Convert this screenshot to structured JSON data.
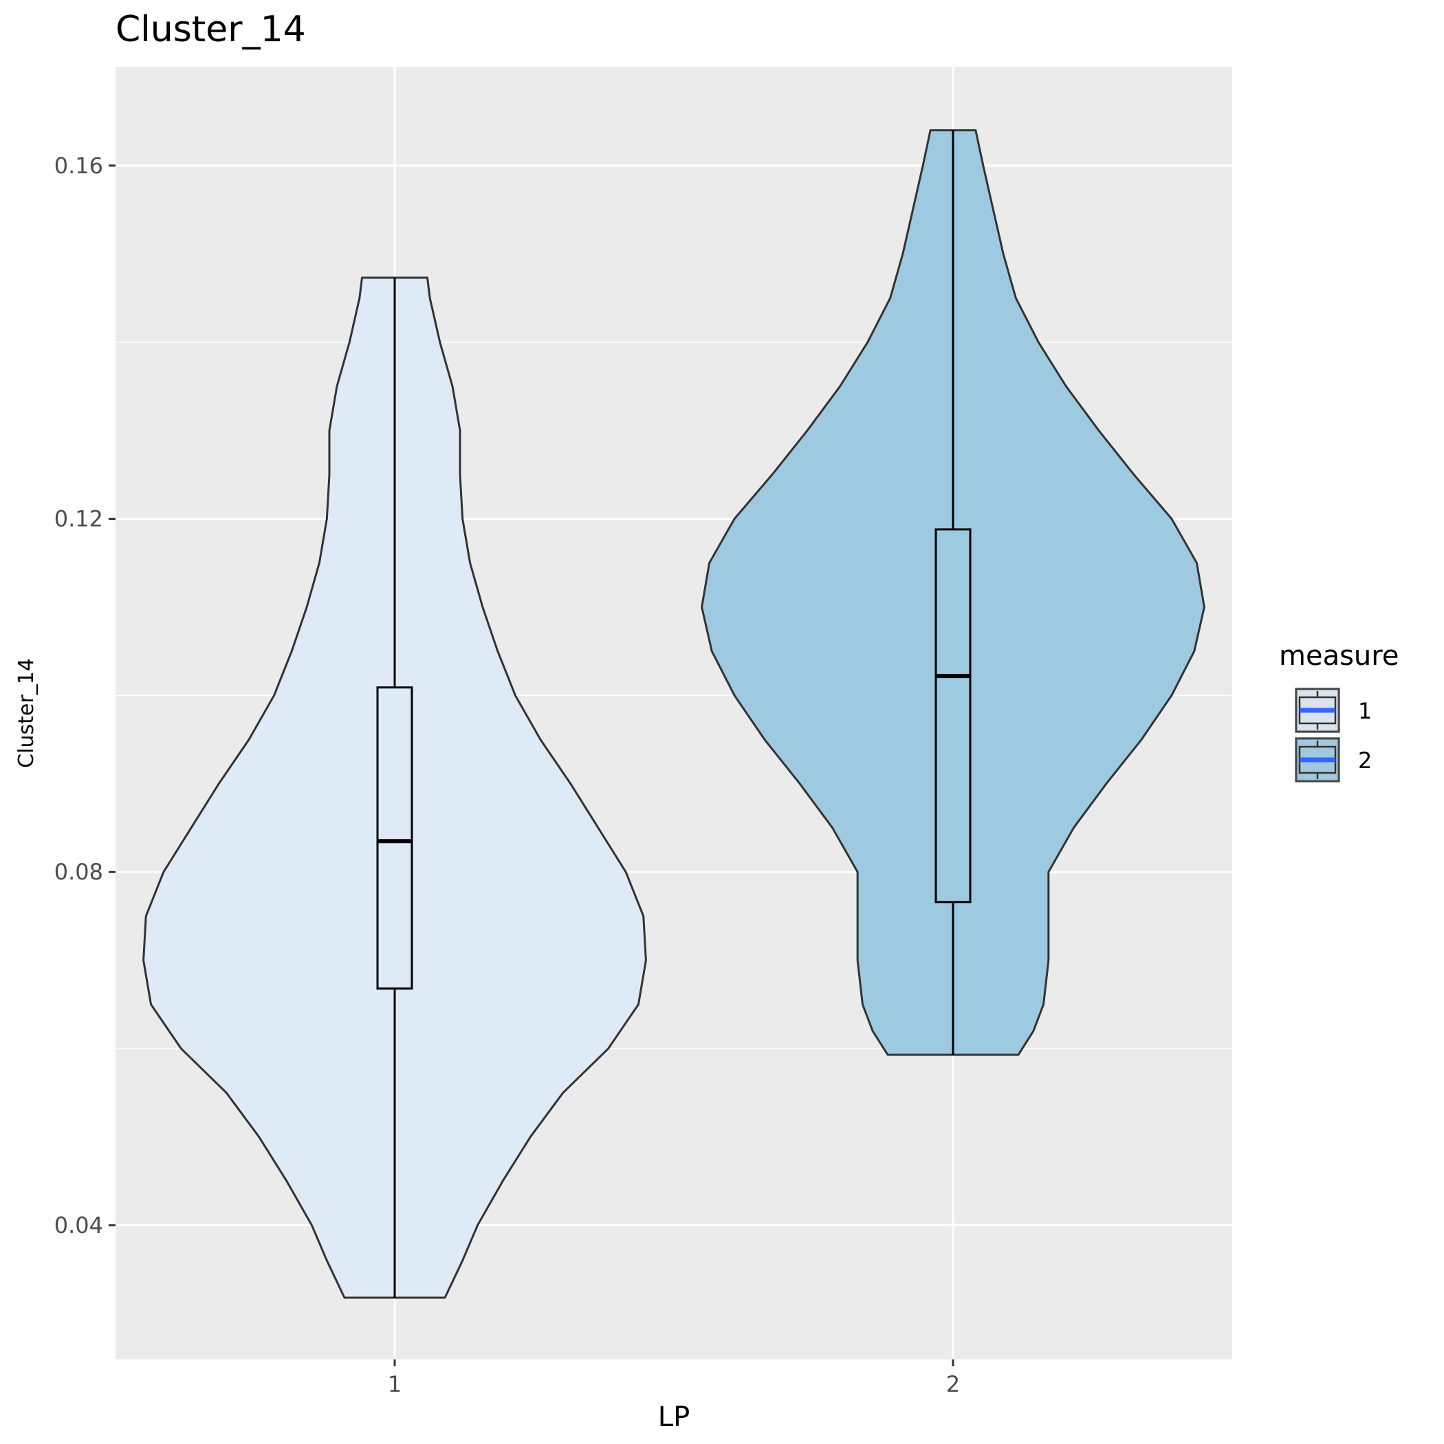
{
  "chart_data": {
    "type": "violin",
    "title": "Cluster_14",
    "xlabel": "LP",
    "ylabel": "Cluster_14",
    "categories": [
      "1",
      "2"
    ],
    "ylim": [
      0.0248,
      0.1712
    ],
    "yticks": [
      0.04,
      0.08,
      0.12,
      0.16
    ],
    "ytick_labels": [
      "0.04",
      "0.08",
      "0.12",
      "0.16"
    ],
    "grid": true,
    "legend": {
      "title": "measure",
      "position": "right",
      "entries": [
        {
          "label": "1",
          "fill": "#deeaf6"
        },
        {
          "label": "2",
          "fill": "#9ecae1"
        }
      ]
    },
    "series": [
      {
        "category": "1",
        "fill": "#deeaf6",
        "box": {
          "min": 0.0318,
          "q1": 0.0668,
          "median": 0.0835,
          "q3": 0.1009,
          "max": 0.1473
        },
        "density_profile": [
          [
            0.0318,
            0.2
          ],
          [
            0.036,
            0.27
          ],
          [
            0.04,
            0.33
          ],
          [
            0.045,
            0.43
          ],
          [
            0.05,
            0.54
          ],
          [
            0.055,
            0.67
          ],
          [
            0.06,
            0.85
          ],
          [
            0.065,
            0.97
          ],
          [
            0.07,
            1.0
          ],
          [
            0.075,
            0.99
          ],
          [
            0.08,
            0.92
          ],
          [
            0.085,
            0.81
          ],
          [
            0.09,
            0.7
          ],
          [
            0.095,
            0.58
          ],
          [
            0.1,
            0.48
          ],
          [
            0.105,
            0.41
          ],
          [
            0.11,
            0.35
          ],
          [
            0.115,
            0.3
          ],
          [
            0.12,
            0.27
          ],
          [
            0.125,
            0.26
          ],
          [
            0.13,
            0.26
          ],
          [
            0.135,
            0.23
          ],
          [
            0.14,
            0.18
          ],
          [
            0.145,
            0.14
          ],
          [
            0.1473,
            0.13
          ]
        ]
      },
      {
        "category": "2",
        "fill": "#9ecae1",
        "box": {
          "min": 0.0593,
          "q1": 0.0766,
          "median": 0.1022,
          "q3": 0.1188,
          "max": 0.164
        },
        "density_profile": [
          [
            0.0593,
            0.26
          ],
          [
            0.062,
            0.32
          ],
          [
            0.065,
            0.36
          ],
          [
            0.07,
            0.38
          ],
          [
            0.075,
            0.38
          ],
          [
            0.08,
            0.38
          ],
          [
            0.085,
            0.48
          ],
          [
            0.09,
            0.61
          ],
          [
            0.095,
            0.75
          ],
          [
            0.1,
            0.87
          ],
          [
            0.105,
            0.96
          ],
          [
            0.11,
            1.0
          ],
          [
            0.115,
            0.97
          ],
          [
            0.12,
            0.87
          ],
          [
            0.125,
            0.72
          ],
          [
            0.13,
            0.58
          ],
          [
            0.135,
            0.45
          ],
          [
            0.14,
            0.34
          ],
          [
            0.145,
            0.25
          ],
          [
            0.15,
            0.2
          ],
          [
            0.155,
            0.16
          ],
          [
            0.16,
            0.12
          ],
          [
            0.164,
            0.09
          ]
        ]
      }
    ]
  }
}
